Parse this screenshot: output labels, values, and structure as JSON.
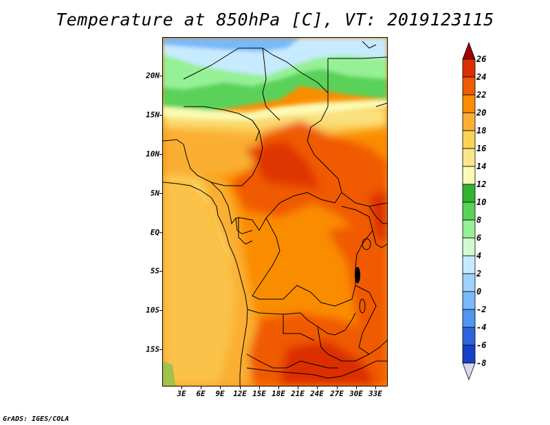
{
  "title": "Temperature at 850hPa [C], VT: 2019123115",
  "footer": "GrADS: IGES/COLA",
  "map": {
    "lat_labels": [
      "20N",
      "15N",
      "10N",
      "5N",
      "EQ",
      "5S",
      "10S",
      "15S"
    ],
    "lon_labels": [
      "3E",
      "6E",
      "9E",
      "12E",
      "15E",
      "18E",
      "21E",
      "24E",
      "27E",
      "30E",
      "33E"
    ]
  },
  "colorbar": {
    "labels": [
      "26",
      "24",
      "22",
      "20",
      "18",
      "16",
      "14",
      "12",
      "10",
      "8",
      "6",
      "4",
      "2",
      "0",
      "-2",
      "-4",
      "-6",
      "-8"
    ],
    "colors": [
      "#a00000",
      "#dc2f00",
      "#f05a00",
      "#fa8c00",
      "#faaf32",
      "#fad25a",
      "#fae68c",
      "#fafab4",
      "#32b432",
      "#5ad25a",
      "#96f096",
      "#d2fad2",
      "#c8eaff",
      "#a0d2ff",
      "#78b9fa",
      "#5096f0",
      "#2d64dc",
      "#1441c8",
      "#000096"
    ]
  }
}
